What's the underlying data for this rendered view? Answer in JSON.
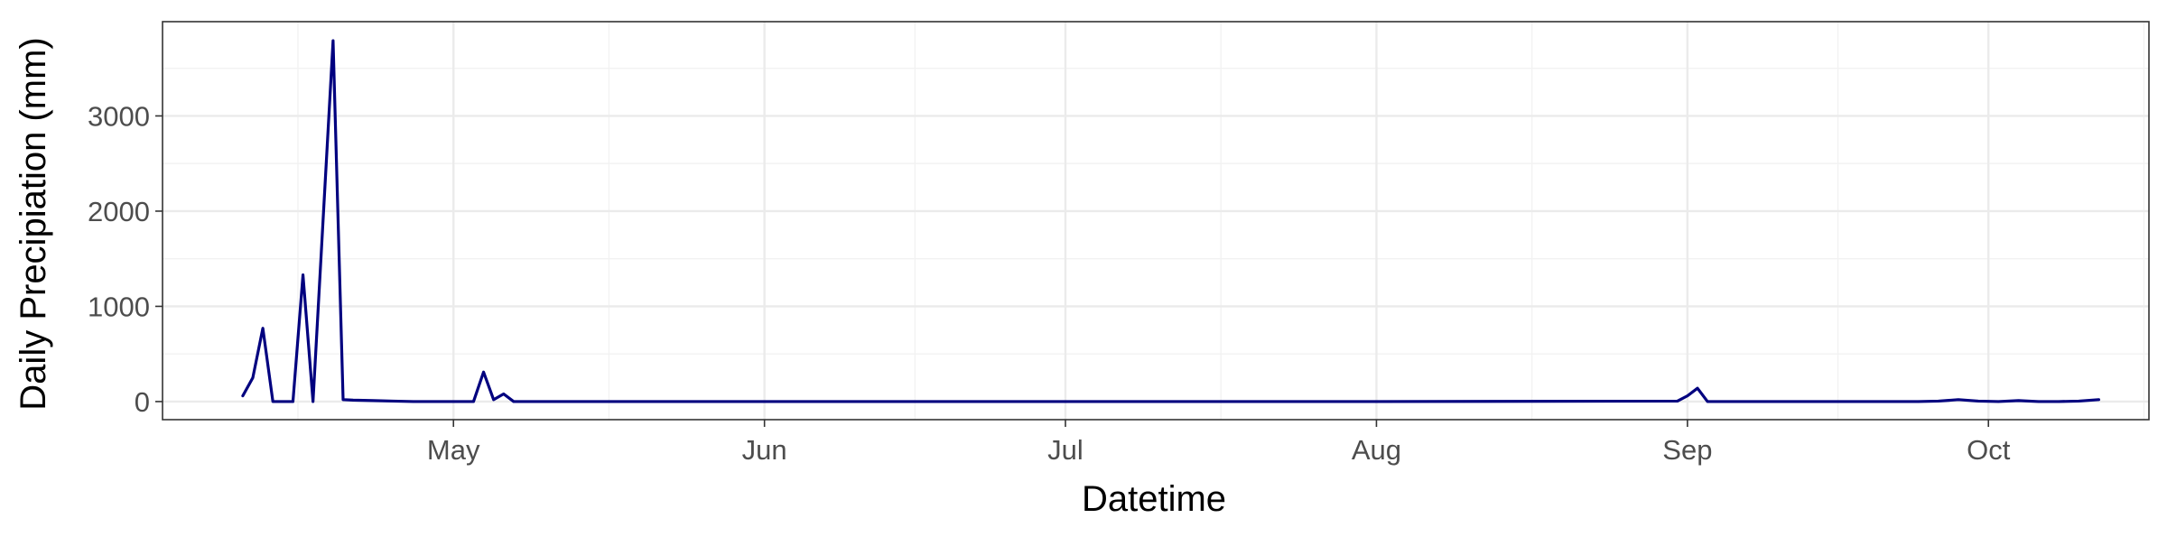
{
  "chart_data": {
    "type": "line",
    "title": "",
    "xlabel": "Datetime",
    "ylabel": "Daily Precipiation (mm)",
    "x_ticks": [
      "May",
      "Jun",
      "Jul",
      "Aug",
      "Sep",
      "Oct"
    ],
    "x_tick_dates": [
      "2023-05-01",
      "2023-06-01",
      "2023-07-01",
      "2023-08-01",
      "2023-09-01",
      "2023-10-01"
    ],
    "y_ticks": [
      0,
      1000,
      2000,
      3000
    ],
    "xlim": [
      "2022-04-02",
      "2022-10-17"
    ],
    "ylim": [
      -190,
      3990
    ],
    "grid": true,
    "line_color": "#00007F",
    "series": [
      {
        "x": [
          "2023-04-10",
          "2023-04-11",
          "2023-04-12",
          "2023-04-13",
          "2023-04-14",
          "2023-04-15",
          "2023-04-16",
          "2023-04-17",
          "2023-04-18",
          "2023-04-19",
          "2023-04-20",
          "2023-04-21",
          "2023-04-23",
          "2023-04-25",
          "2023-04-27",
          "2023-04-29",
          "2023-05-01",
          "2023-05-03",
          "2023-05-04",
          "2023-05-05",
          "2023-05-06",
          "2023-05-07",
          "2023-05-08",
          "2023-05-10",
          "2023-06-01",
          "2023-07-01",
          "2023-08-01",
          "2023-08-31",
          "2023-09-01",
          "2023-09-02",
          "2023-09-03",
          "2023-09-20",
          "2023-09-24",
          "2023-09-26",
          "2023-09-28",
          "2023-09-30",
          "2023-10-02",
          "2023-10-04",
          "2023-10-06",
          "2023-10-08",
          "2023-10-10",
          "2023-10-12"
        ],
        "y": [
          60,
          250,
          770,
          0,
          0,
          0,
          1330,
          0,
          1900,
          3790,
          20,
          15,
          10,
          5,
          0,
          0,
          0,
          0,
          310,
          20,
          80,
          0,
          0,
          0,
          0,
          0,
          0,
          5,
          60,
          140,
          0,
          0,
          0,
          5,
          20,
          5,
          0,
          10,
          0,
          0,
          5,
          20
        ]
      }
    ]
  }
}
